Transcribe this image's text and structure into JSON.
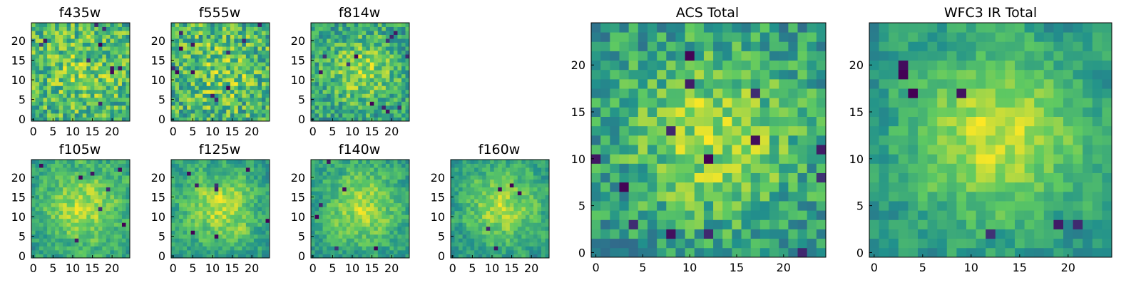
{
  "colormap": [
    "#440154",
    "#3b528b",
    "#21918c",
    "#5ec962",
    "#fde725"
  ],
  "chart_data": [
    {
      "type": "heatmap",
      "title": "f435w",
      "grid_size": 25,
      "xticks": [
        0,
        5,
        10,
        15,
        20
      ],
      "yticks": [
        0,
        5,
        10,
        15,
        20
      ],
      "seed": 11,
      "smooth": 0,
      "blob": 0.15,
      "spikes": 10
    },
    {
      "type": "heatmap",
      "title": "f555w",
      "grid_size": 25,
      "xticks": [
        0,
        5,
        10,
        15,
        20
      ],
      "yticks": [
        0,
        5,
        10,
        15,
        20
      ],
      "seed": 23,
      "smooth": 0,
      "blob": 0.15,
      "spikes": 12
    },
    {
      "type": "heatmap",
      "title": "f814w",
      "grid_size": 25,
      "xticks": [
        0,
        5,
        10,
        15,
        20
      ],
      "yticks": [
        0,
        5,
        10,
        15,
        20
      ],
      "seed": 37,
      "smooth": 0,
      "blob": 0.35,
      "spikes": 12
    },
    {
      "type": "heatmap",
      "title": "f105w",
      "grid_size": 25,
      "xticks": [
        0,
        5,
        10,
        15,
        20
      ],
      "yticks": [
        0,
        5,
        10,
        15,
        20
      ],
      "seed": 41,
      "smooth": 1,
      "blob": 0.45,
      "spikes": 8
    },
    {
      "type": "heatmap",
      "title": "f125w",
      "grid_size": 25,
      "xticks": [
        0,
        5,
        10,
        15,
        20
      ],
      "yticks": [
        0,
        5,
        10,
        15,
        20
      ],
      "seed": 53,
      "smooth": 1,
      "blob": 0.45,
      "spikes": 8
    },
    {
      "type": "heatmap",
      "title": "f140w",
      "grid_size": 25,
      "xticks": [
        0,
        5,
        10,
        15,
        20
      ],
      "yticks": [
        0,
        5,
        10,
        15,
        20
      ],
      "seed": 67,
      "smooth": 1,
      "blob": 0.45,
      "spikes": 6
    },
    {
      "type": "heatmap",
      "title": "f160w",
      "grid_size": 25,
      "xticks": [
        0,
        5,
        10,
        15,
        20
      ],
      "yticks": [
        0,
        5,
        10,
        15,
        20
      ],
      "seed": 79,
      "smooth": 1,
      "blob": 0.5,
      "spikes": 5
    },
    {
      "type": "heatmap",
      "title": "ACS Total",
      "grid_size": 25,
      "xticks": [
        0,
        5,
        10,
        15,
        20
      ],
      "yticks": [
        0,
        5,
        10,
        15,
        20
      ],
      "seed": 97,
      "smooth": 0,
      "blob": 0.45,
      "spikes": 14
    },
    {
      "type": "heatmap",
      "title": "WFC3 IR Total",
      "grid_size": 25,
      "xticks": [
        0,
        5,
        10,
        15,
        20
      ],
      "yticks": [
        0,
        5,
        10,
        15,
        20
      ],
      "seed": 113,
      "smooth": 1,
      "blob": 0.6,
      "spikes": 7
    }
  ]
}
